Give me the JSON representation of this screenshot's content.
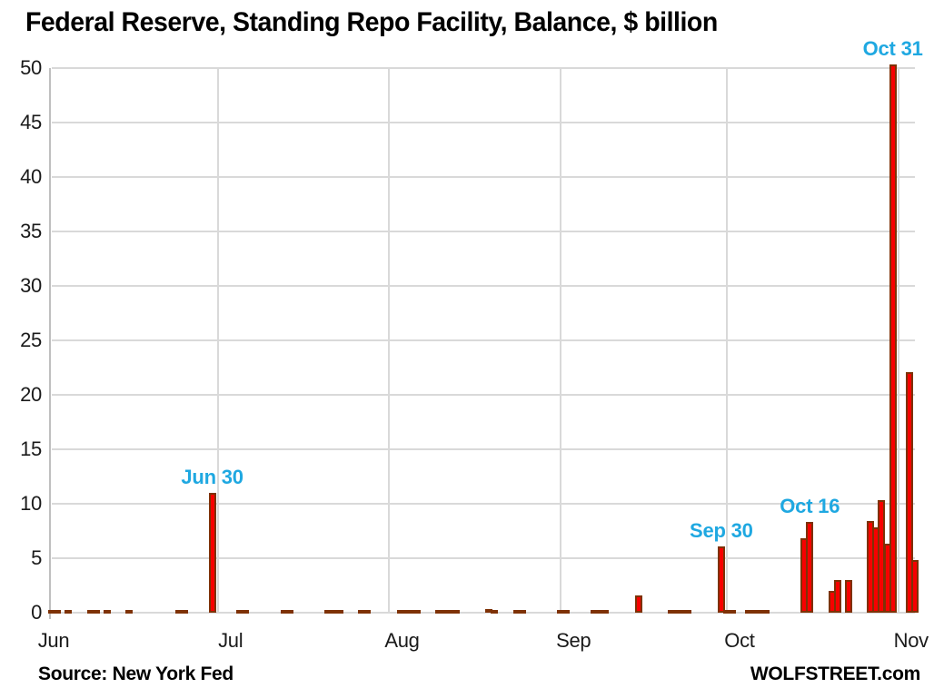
{
  "header": {
    "title": "Federal Reserve, Standing Repo Facility, Balance, $ billion"
  },
  "footer": {
    "source": "Source: New York Fed",
    "branding": "WOLFSTREET.com"
  },
  "chart_data": {
    "type": "bar",
    "title": "Federal Reserve, Standing Repo Facility, Balance, $ billion",
    "ylabel": "$ billion",
    "ylim": [
      0,
      50
    ],
    "yticks": [
      0,
      5,
      10,
      15,
      20,
      25,
      30,
      35,
      40,
      45,
      50
    ],
    "x_months": [
      "Jun",
      "Jul",
      "Aug",
      "Sep",
      "Oct",
      "Nov"
    ],
    "month_start_days": [
      0,
      30,
      61,
      92,
      122,
      153
    ],
    "x_domain_days": 156,
    "grid": true,
    "legend": "none",
    "colors": {
      "bar_fill": "#f70000",
      "bar_border": "#7e3206",
      "grid": "#d9d9d9",
      "axis": "#bfbfbf",
      "annotation": "#1fa8e1",
      "label_text": "#1a1a1a"
    },
    "points": [
      {
        "date": "Jun 1",
        "day": 0,
        "value": 0.15
      },
      {
        "date": "Jun 2",
        "day": 1,
        "value": 0.15
      },
      {
        "date": "Jun 4",
        "day": 3,
        "value": 0.15
      },
      {
        "date": "Jun 8",
        "day": 7,
        "value": 0.15
      },
      {
        "date": "Jun 9",
        "day": 8,
        "value": 0.15
      },
      {
        "date": "Jun 11",
        "day": 10,
        "value": 0.15
      },
      {
        "date": "Jun 15",
        "day": 14,
        "value": 0.15
      },
      {
        "date": "Jun 24",
        "day": 23,
        "value": 0.15
      },
      {
        "date": "Jun 25",
        "day": 24,
        "value": 0.15
      },
      {
        "date": "Jun 30",
        "day": 29,
        "value": 11.0,
        "annotation": "Jun 30"
      },
      {
        "date": "Jul 5",
        "day": 34,
        "value": 0.15
      },
      {
        "date": "Jul 6",
        "day": 35,
        "value": 0.15
      },
      {
        "date": "Jul 13",
        "day": 42,
        "value": 0.15
      },
      {
        "date": "Jul 14",
        "day": 43,
        "value": 0.15
      },
      {
        "date": "Jul 21",
        "day": 50,
        "value": 0.15
      },
      {
        "date": "Jul 22",
        "day": 51,
        "value": 0.15
      },
      {
        "date": "Jul 23",
        "day": 52,
        "value": 0.15
      },
      {
        "date": "Jul 27",
        "day": 56,
        "value": 0.15
      },
      {
        "date": "Jul 28",
        "day": 57,
        "value": 0.15
      },
      {
        "date": "Aug 3",
        "day": 63,
        "value": 0.15
      },
      {
        "date": "Aug 4",
        "day": 64,
        "value": 0.15
      },
      {
        "date": "Aug 5",
        "day": 65,
        "value": 0.15
      },
      {
        "date": "Aug 6",
        "day": 66,
        "value": 0.15
      },
      {
        "date": "Aug 10",
        "day": 70,
        "value": 0.15
      },
      {
        "date": "Aug 11",
        "day": 71,
        "value": 0.15
      },
      {
        "date": "Aug 12",
        "day": 72,
        "value": 0.15
      },
      {
        "date": "Aug 13",
        "day": 73,
        "value": 0.15
      },
      {
        "date": "Aug 19",
        "day": 79,
        "value": 0.35
      },
      {
        "date": "Aug 20",
        "day": 80,
        "value": 0.15
      },
      {
        "date": "Aug 24",
        "day": 84,
        "value": 0.15
      },
      {
        "date": "Aug 25",
        "day": 85,
        "value": 0.15
      },
      {
        "date": "Sep 1",
        "day": 92,
        "value": 0.15
      },
      {
        "date": "Sep 2",
        "day": 93,
        "value": 0.15
      },
      {
        "date": "Sep 7",
        "day": 98,
        "value": 0.15
      },
      {
        "date": "Sep 8",
        "day": 99,
        "value": 0.15
      },
      {
        "date": "Sep 9",
        "day": 100,
        "value": 0.15
      },
      {
        "date": "Sep 15",
        "day": 106,
        "value": 1.6
      },
      {
        "date": "Sep 21",
        "day": 112,
        "value": 0.15
      },
      {
        "date": "Sep 22",
        "day": 113,
        "value": 0.15
      },
      {
        "date": "Sep 23",
        "day": 114,
        "value": 0.15
      },
      {
        "date": "Sep 24",
        "day": 115,
        "value": 0.15
      },
      {
        "date": "Sep 30",
        "day": 121,
        "value": 6.1,
        "annotation": "Sep 30"
      },
      {
        "date": "Oct 1",
        "day": 122,
        "value": 0.15
      },
      {
        "date": "Oct 2",
        "day": 123,
        "value": 0.15
      },
      {
        "date": "Oct 5",
        "day": 126,
        "value": 0.15
      },
      {
        "date": "Oct 6",
        "day": 127,
        "value": 0.15
      },
      {
        "date": "Oct 7",
        "day": 128,
        "value": 0.15
      },
      {
        "date": "Oct 8",
        "day": 129,
        "value": 0.15
      },
      {
        "date": "Oct 15",
        "day": 136,
        "value": 6.8
      },
      {
        "date": "Oct 16",
        "day": 137,
        "value": 8.35,
        "annotation": "Oct 16"
      },
      {
        "date": "Oct 20",
        "day": 141,
        "value": 2.0
      },
      {
        "date": "Oct 21",
        "day": 142,
        "value": 3.0
      },
      {
        "date": "Oct 23",
        "day": 144,
        "value": 3.0
      },
      {
        "date": "Oct 27",
        "day": 148,
        "value": 8.4
      },
      {
        "date": "Oct 28",
        "day": 149,
        "value": 7.8
      },
      {
        "date": "Oct 29",
        "day": 150,
        "value": 10.35
      },
      {
        "date": "Oct 30",
        "day": 151,
        "value": 6.3
      },
      {
        "date": "Oct 31",
        "day": 152,
        "value": 50.35,
        "annotation": "Oct 31"
      },
      {
        "date": "Nov 3",
        "day": 155,
        "value": 22.1
      },
      {
        "date": "Nov 4",
        "day": 156,
        "value": 4.85
      }
    ]
  }
}
